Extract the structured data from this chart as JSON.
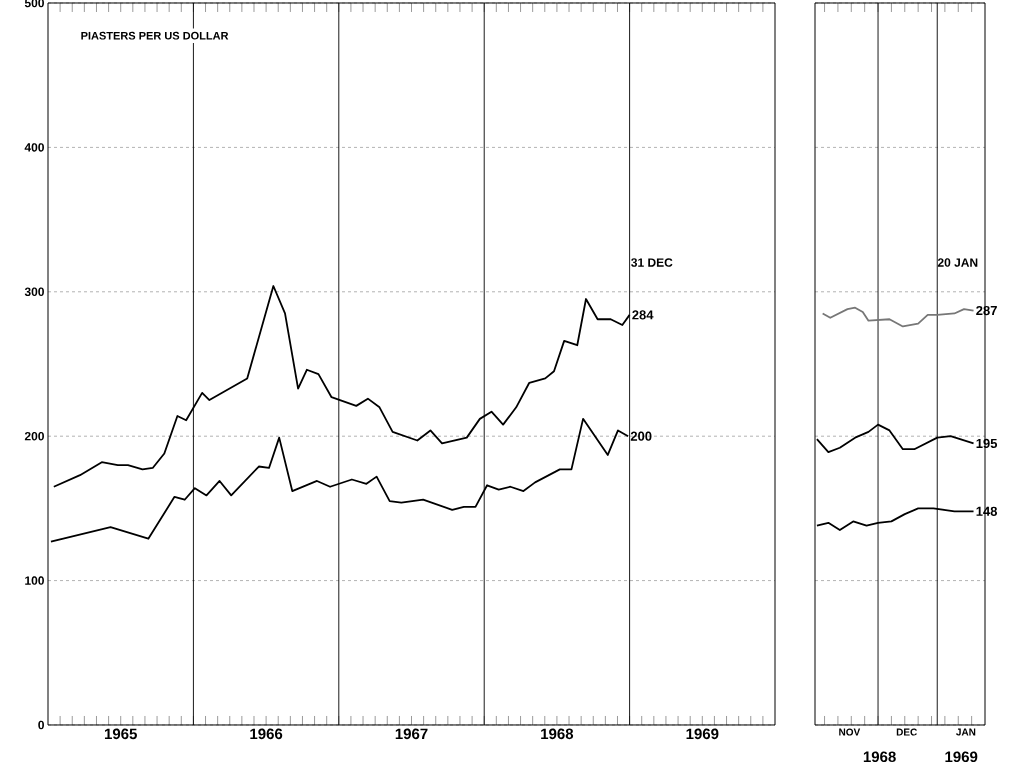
{
  "chart_data": [
    {
      "type": "line",
      "ylabel": "PIASTERS PER US DOLLAR",
      "xlim": [
        1965,
        1970
      ],
      "ylim": [
        0,
        500
      ],
      "xticks": [
        {
          "value": 1965.5,
          "label": "1965"
        },
        {
          "value": 1966.5,
          "label": "1966"
        },
        {
          "value": 1967.5,
          "label": "1967"
        },
        {
          "value": 1968.5,
          "label": "1968"
        },
        {
          "value": 1969.5,
          "label": "1969"
        }
      ],
      "yticks": [
        0,
        100,
        200,
        300,
        400,
        500
      ],
      "grid": "y",
      "ref_lines": [
        {
          "axis": "x",
          "value": 1966,
          "color": "#000000"
        },
        {
          "axis": "x",
          "value": 1967,
          "color": "#000000"
        },
        {
          "axis": "x",
          "value": 1968,
          "color": "#000000"
        },
        {
          "axis": "x",
          "value": 1969,
          "color": "#000000"
        }
      ],
      "annotations": [
        "31 DEC"
      ],
      "series": [
        {
          "color": "#000000",
          "x": [
            1965.04,
            1965.22,
            1965.37,
            1965.48,
            1965.55,
            1965.65,
            1965.72,
            1965.8,
            1965.89,
            1965.95,
            1966.06,
            1966.11,
            1966.37,
            1966.55,
            1966.63,
            1966.72,
            1966.78,
            1966.86,
            1966.95,
            1967.12,
            1967.2,
            1967.28,
            1967.37,
            1967.54,
            1967.63,
            1967.71,
            1967.88,
            1967.97,
            1968.05,
            1968.13,
            1968.22,
            1968.31,
            1968.42,
            1968.48,
            1968.55,
            1968.64,
            1968.7,
            1968.78,
            1968.87,
            1968.95,
            1969.0
          ],
          "values": [
            165,
            173,
            182,
            180,
            180,
            177,
            178,
            188,
            214,
            211,
            230,
            225,
            240,
            304,
            285,
            233,
            246,
            243,
            227,
            221,
            226,
            220,
            203,
            197,
            204,
            195,
            199,
            212,
            217,
            208,
            220,
            237,
            240,
            245,
            266,
            263,
            295,
            281,
            281,
            277,
            284
          ],
          "value_labels": [
            null,
            null,
            null,
            null,
            null,
            null,
            null,
            null,
            null,
            null,
            null,
            null,
            null,
            null,
            null,
            null,
            null,
            null,
            null,
            null,
            null,
            null,
            null,
            null,
            null,
            null,
            null,
            null,
            null,
            null,
            null,
            null,
            null,
            null,
            null,
            null,
            null,
            null,
            null,
            null,
            "284"
          ]
        },
        {
          "color": "#000000",
          "x": [
            1965.02,
            1965.43,
            1965.69,
            1965.87,
            1965.94,
            1966.01,
            1966.09,
            1966.18,
            1966.26,
            1966.45,
            1966.52,
            1966.59,
            1966.68,
            1966.85,
            1966.94,
            1967.09,
            1967.19,
            1967.26,
            1967.35,
            1967.43,
            1967.58,
            1967.78,
            1967.86,
            1967.94,
            1968.02,
            1968.1,
            1968.18,
            1968.27,
            1968.35,
            1968.52,
            1968.6,
            1968.68,
            1968.85,
            1968.92,
            1968.99
          ],
          "values": [
            127,
            137,
            129,
            158,
            156,
            164,
            159,
            169,
            159,
            179,
            178,
            199,
            162,
            169,
            165,
            170,
            167,
            172,
            155,
            154,
            156,
            149,
            151,
            151,
            166,
            163,
            165,
            162,
            168,
            177,
            177,
            212,
            187,
            204,
            200
          ],
          "value_labels": [
            null,
            null,
            null,
            null,
            null,
            null,
            null,
            null,
            null,
            null,
            null,
            null,
            null,
            null,
            null,
            null,
            null,
            null,
            null,
            null,
            null,
            null,
            null,
            null,
            null,
            null,
            null,
            null,
            null,
            null,
            null,
            null,
            null,
            null,
            "200"
          ]
        }
      ]
    },
    {
      "type": "line",
      "xlim": [
        "1968-10-29",
        "1969-01-26"
      ],
      "ylim": [
        0,
        500
      ],
      "xticks": [
        {
          "value": "1968-11-16",
          "label": "NOV"
        },
        {
          "value": "1968-12-16",
          "label": "DEC"
        },
        {
          "value": "1969-01-16",
          "label": "JAN"
        }
      ],
      "yticks": [
        0,
        100,
        200,
        300,
        400,
        500
      ],
      "grid": "y",
      "tick_labels": "x",
      "ref_lines": [
        {
          "axis": "x",
          "value": "1968-12-01",
          "color": "#000000"
        },
        {
          "axis": "x",
          "value": "1969-01-01",
          "color": "#000000"
        }
      ],
      "annotations": [
        "20 JAN",
        "1968",
        "1969"
      ],
      "series": [
        {
          "color": "#777777",
          "x": [
            "1968-11-02",
            "1968-11-06",
            "1968-11-15",
            "1968-11-19",
            "1968-11-23",
            "1968-11-26",
            "1968-12-07",
            "1968-12-14",
            "1968-12-22",
            "1968-12-27",
            "1969-01-01",
            "1969-01-10",
            "1969-01-15",
            "1969-01-20"
          ],
          "values": [
            285,
            282,
            288,
            289,
            286,
            280,
            281,
            276,
            278,
            284,
            284,
            285,
            288,
            287
          ],
          "value_labels": [
            null,
            null,
            null,
            null,
            null,
            null,
            null,
            null,
            null,
            null,
            null,
            null,
            null,
            "287"
          ]
        },
        {
          "color": "#000000",
          "x": [
            "1968-10-30",
            "1968-11-05",
            "1968-11-11",
            "1968-11-19",
            "1968-11-26",
            "1968-12-01",
            "1968-12-07",
            "1968-12-14",
            "1968-12-20",
            "1969-01-01",
            "1969-01-08",
            "1969-01-20"
          ],
          "values": [
            198,
            189,
            192,
            199,
            203,
            208,
            204,
            191,
            191,
            199,
            200,
            195
          ],
          "value_labels": [
            null,
            null,
            null,
            null,
            null,
            null,
            null,
            null,
            null,
            null,
            null,
            "195"
          ]
        },
        {
          "color": "#000000",
          "x": [
            "1968-10-30",
            "1968-11-05",
            "1968-11-11",
            "1968-11-18",
            "1968-11-25",
            "1968-12-01",
            "1968-12-08",
            "1968-12-15",
            "1968-12-22",
            "1968-12-30",
            "1969-01-10",
            "1969-01-20"
          ],
          "values": [
            138,
            140,
            135,
            141,
            138,
            140,
            141,
            146,
            150,
            150,
            148,
            148
          ],
          "value_labels": [
            null,
            null,
            null,
            null,
            null,
            null,
            null,
            null,
            null,
            null,
            null,
            "148"
          ]
        }
      ]
    }
  ]
}
